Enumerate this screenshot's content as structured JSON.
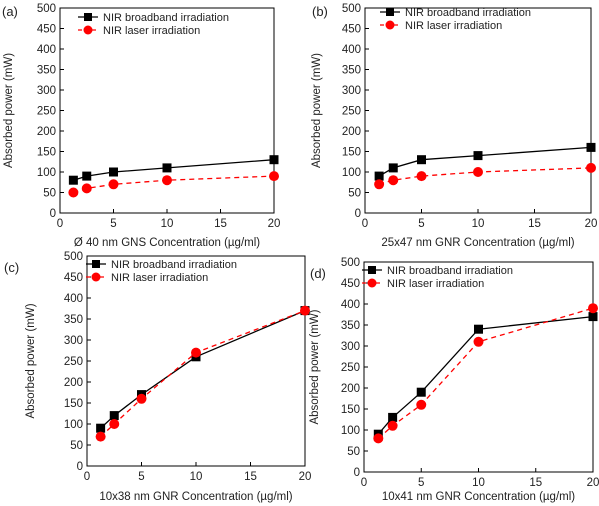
{
  "figure": {
    "panels": [
      {
        "label": "(a)",
        "xlabel": "Ø 40 nm GNS Concentration (µg/ml)",
        "ylabel": "Absorbed power (mW)"
      },
      {
        "label": "(b)",
        "xlabel": "25x47 nm GNR Concentration (µg/ml)",
        "ylabel": "Absorbed power (mW)"
      },
      {
        "label": "(c)",
        "xlabel": "10x38 nm GNR Concentration (µg/ml)",
        "ylabel": "Absorbed power (mW)"
      },
      {
        "label": "(d)",
        "xlabel": "10x41 nm GNR Concentration (µg/ml)",
        "ylabel": "Absorbed power (mW)"
      }
    ]
  },
  "colors": {
    "broadband": "#000000",
    "laser": "#ff0000"
  },
  "chart_data": [
    {
      "type": "line",
      "xlabel": "Ø 40 nm GNS Concentration (µg/ml)",
      "ylabel": "Absorbed power (mW)",
      "xlim": [
        0,
        20
      ],
      "ylim": [
        0,
        500
      ],
      "xticks": [
        0,
        5,
        10,
        15,
        20
      ],
      "yticks": [
        0,
        50,
        100,
        150,
        200,
        250,
        300,
        350,
        400,
        450,
        500
      ],
      "legend_position": "top-left",
      "series": [
        {
          "name": "NIR broadband irradiation",
          "marker": "square",
          "line": "solid",
          "x": [
            1.25,
            2.5,
            5,
            10,
            20
          ],
          "y": [
            80,
            90,
            100,
            110,
            130
          ]
        },
        {
          "name": "NIR laser irradiation",
          "marker": "circle",
          "line": "dashed",
          "x": [
            1.25,
            2.5,
            5,
            10,
            20
          ],
          "y": [
            50,
            60,
            70,
            80,
            90
          ]
        }
      ]
    },
    {
      "type": "line",
      "xlabel": "25x47 nm GNR Concentration (µg/ml)",
      "ylabel": "Absorbed power (mW)",
      "xlim": [
        0,
        20
      ],
      "ylim": [
        0,
        500
      ],
      "xticks": [
        0,
        5,
        10,
        15,
        20
      ],
      "yticks": [
        0,
        50,
        100,
        150,
        200,
        250,
        300,
        350,
        400,
        450,
        500
      ],
      "legend_position": "top-left",
      "series": [
        {
          "name": "NIR broadband irradiation",
          "marker": "square",
          "line": "solid",
          "x": [
            1.25,
            2.5,
            5,
            10,
            20
          ],
          "y": [
            90,
            110,
            130,
            140,
            160
          ]
        },
        {
          "name": "NIR laser irradiation",
          "marker": "circle",
          "line": "dashed",
          "x": [
            1.25,
            2.5,
            5,
            10,
            20
          ],
          "y": [
            70,
            80,
            90,
            100,
            110
          ]
        }
      ]
    },
    {
      "type": "line",
      "xlabel": "10x38 nm GNR Concentration (µg/ml)",
      "ylabel": "Absorbed power (mW)",
      "xlim": [
        0,
        20
      ],
      "ylim": [
        0,
        500
      ],
      "xticks": [
        0,
        5,
        10,
        15,
        20
      ],
      "yticks": [
        0,
        50,
        100,
        150,
        200,
        250,
        300,
        350,
        400,
        450,
        500
      ],
      "legend_position": "top-left",
      "series": [
        {
          "name": "NIR broadband irradiation",
          "marker": "square",
          "line": "solid",
          "x": [
            1.25,
            2.5,
            5,
            10,
            20
          ],
          "y": [
            90,
            120,
            170,
            260,
            370
          ]
        },
        {
          "name": "NIR laser irradiation",
          "marker": "circle",
          "line": "dashed",
          "x": [
            1.25,
            2.5,
            5,
            10,
            20
          ],
          "y": [
            70,
            100,
            160,
            270,
            370
          ]
        }
      ]
    },
    {
      "type": "line",
      "xlabel": "10x41 nm GNR Concentration (µg/ml)",
      "ylabel": "Absorbed power (mW)",
      "xlim": [
        0,
        20
      ],
      "ylim": [
        0,
        500
      ],
      "xticks": [
        0,
        5,
        10,
        15,
        20
      ],
      "yticks": [
        0,
        50,
        100,
        150,
        200,
        250,
        300,
        350,
        400,
        450,
        500
      ],
      "legend_position": "top-left",
      "series": [
        {
          "name": "NIR broadband irradiation",
          "marker": "square",
          "line": "solid",
          "x": [
            1.25,
            2.5,
            5,
            10,
            20
          ],
          "y": [
            90,
            130,
            190,
            340,
            370
          ]
        },
        {
          "name": "NIR laser irradiation",
          "marker": "circle",
          "line": "dashed",
          "x": [
            1.25,
            2.5,
            5,
            10,
            20
          ],
          "y": [
            80,
            110,
            160,
            310,
            390
          ]
        }
      ]
    }
  ]
}
